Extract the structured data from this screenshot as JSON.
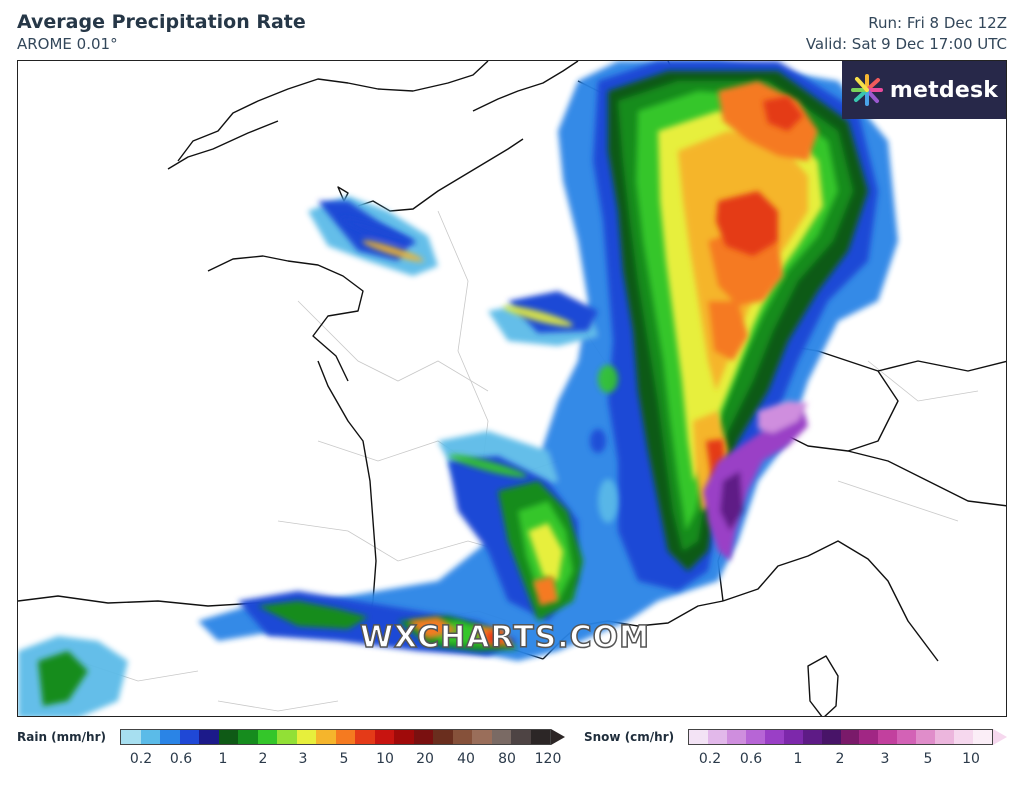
{
  "header": {
    "title": "Average Precipitation Rate",
    "model": "AROME 0.01°",
    "run": "Run: Fri 8 Dec 12Z",
    "valid": "Valid: Sat 9 Dec 17:00 UTC"
  },
  "logo": {
    "text": "metdesk",
    "icon": "starburst-icon",
    "bg": "#272849"
  },
  "watermark": "WXCHARTS.COM",
  "legend": {
    "rain": {
      "label": "Rain (mm/hr)",
      "colors": [
        "#a7dff0",
        "#5bbbe8",
        "#2a84e6",
        "#1f48d6",
        "#1c1a8a",
        "#0f5a16",
        "#168c1e",
        "#34c62a",
        "#92e036",
        "#e7ef3c",
        "#f5b52c",
        "#f57a20",
        "#e43a18",
        "#c81410",
        "#a00a0a",
        "#7a1010",
        "#6a2e1e",
        "#86513a",
        "#9a6e5a",
        "#7a6a64",
        "#4e4444",
        "#2c2626"
      ],
      "ticks": [
        "0.2",
        "0.6",
        "1",
        "2",
        "3",
        "5",
        "10",
        "20",
        "40",
        "80",
        "120"
      ]
    },
    "snow": {
      "label": "Snow (cm/hr)",
      "colors": [
        "#f3e3f5",
        "#e2b8ea",
        "#cf8ede",
        "#b765d6",
        "#9a3fc6",
        "#7d28ab",
        "#5e1b86",
        "#481468",
        "#7a1a6a",
        "#a12684",
        "#c2409e",
        "#d362b6",
        "#e08dca",
        "#ecb6dd",
        "#f6d8ee",
        "#fbeef7"
      ],
      "ticks": [
        "0.2",
        "0.6",
        "1",
        "2",
        "3",
        "5",
        "10"
      ]
    }
  }
}
